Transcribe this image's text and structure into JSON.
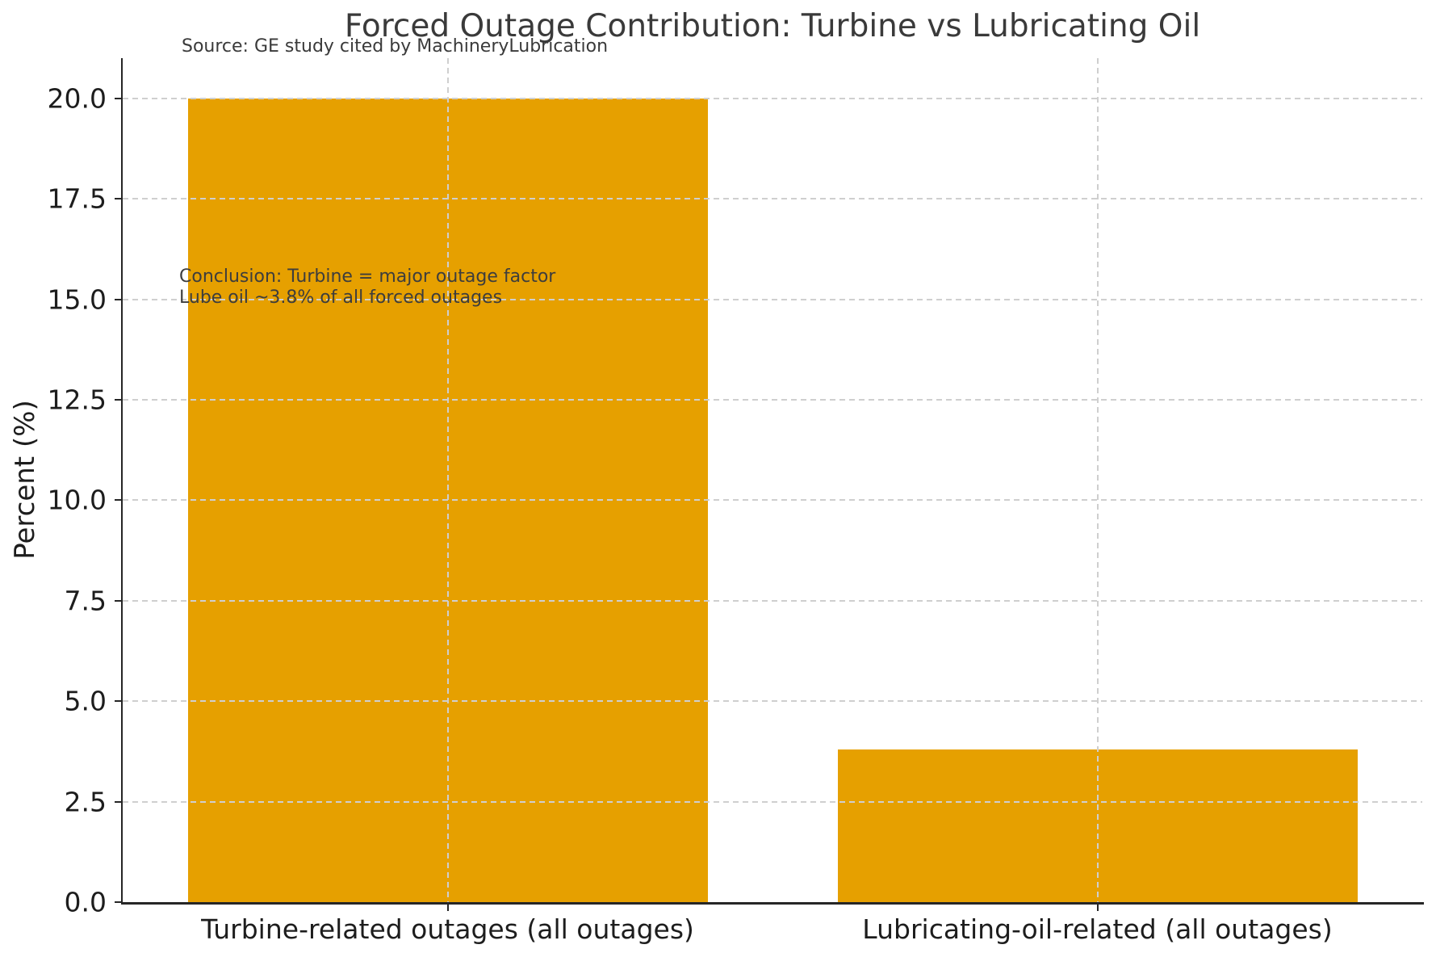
{
  "figure": {
    "title": "Forced Outage Contribution: Turbine vs Lubricating Oil",
    "source_note": "Source: GE study cited by MachineryLubrication",
    "annotation": {
      "line1": "Conclusion: Turbine = major outage factor",
      "line2": "Lube oil ~3.8% of all forced outages"
    }
  },
  "chart_data": {
    "type": "bar",
    "title": "Forced Outage Contribution: Turbine vs Lubricating Oil",
    "categories": [
      "Turbine-related outages (all outages)",
      "Lubricating-oil-related (all outages)"
    ],
    "values": [
      20.0,
      3.8
    ],
    "xlabel": "",
    "ylabel": "Percent (%)",
    "ylim": [
      0,
      21
    ],
    "yticks": [
      0.0,
      2.5,
      5.0,
      7.5,
      10.0,
      12.5,
      15.0,
      17.5,
      20.0
    ],
    "ytick_labels": [
      "0.0",
      "2.5",
      "5.0",
      "7.5",
      "10.0",
      "12.5",
      "15.0",
      "17.5",
      "20.0"
    ],
    "bar_color": "#E6A000",
    "bar_width_fraction": 0.8,
    "grid": "both",
    "grid_line_style": "dashed",
    "grid_color": "#cfcfcf",
    "axis_color": "#262626",
    "legend_position": "none",
    "source_note": "Source: GE study cited by MachineryLubrication",
    "annotation": "Conclusion: Turbine = major outage factor\nLube oil ~3.8% of all forced outages"
  }
}
